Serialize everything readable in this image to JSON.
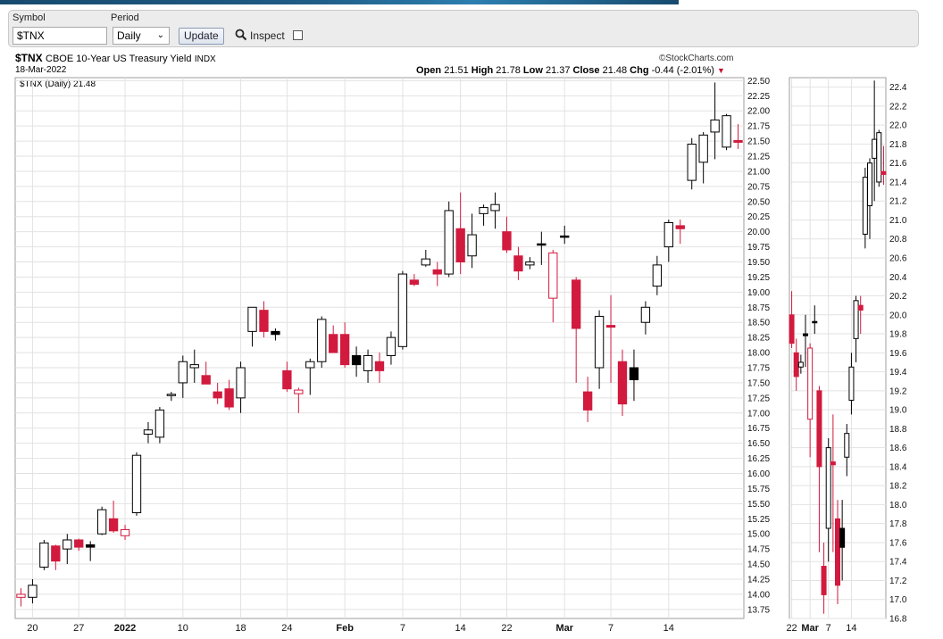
{
  "controls": {
    "symbol_label": "Symbol",
    "symbol_value": "$TNX",
    "period_label": "Period",
    "period_value": "Daily",
    "update_label": "Update",
    "inspect_label": "Inspect",
    "inspect_checked": false
  },
  "header": {
    "symbol": "$TNX",
    "name": "CBOE 10-Year US Treasury Yield",
    "exchange": "INDX",
    "date": "18-Mar-2022",
    "brand": "©StockCharts.com",
    "legend": "$TNX (Daily) 21.48",
    "open_label": "Open",
    "open": "21.51",
    "high_label": "High",
    "high": "21.78",
    "low_label": "Low",
    "low": "21.37",
    "close_label": "Close",
    "close": "21.48",
    "chg_label": "Chg",
    "chg": "-0.44 (-2.01%)"
  },
  "colors": {
    "up": "#ffffff",
    "down_solid": "#d11a3e",
    "black": "#000000",
    "grid": "#e2e2e2",
    "accent": "#c41230"
  },
  "chart_data": [
    {
      "type": "candlestick",
      "title": "$TNX CBOE 10-Year US Treasury Yield INDX",
      "ylim": [
        13.6,
        22.55
      ],
      "yticks": [
        13.75,
        14.0,
        14.25,
        14.5,
        14.75,
        15.0,
        15.25,
        15.5,
        15.75,
        16.0,
        16.25,
        16.5,
        16.75,
        17.0,
        17.25,
        17.5,
        17.75,
        18.0,
        18.25,
        18.5,
        18.75,
        19.0,
        19.25,
        19.5,
        19.75,
        20.0,
        20.25,
        20.5,
        20.75,
        21.0,
        21.25,
        21.5,
        21.75,
        22.0,
        22.25,
        22.5
      ],
      "xticks": [
        {
          "label": "20",
          "i": 1
        },
        {
          "label": "27",
          "i": 5
        },
        {
          "label": "2022",
          "i": 9
        },
        {
          "label": "10",
          "i": 14
        },
        {
          "label": "18",
          "i": 19
        },
        {
          "label": "24",
          "i": 23
        },
        {
          "label": "Feb",
          "i": 28
        },
        {
          "label": "7",
          "i": 33
        },
        {
          "label": "14",
          "i": 38
        },
        {
          "label": "22",
          "i": 42
        },
        {
          "label": "Mar",
          "i": 47
        },
        {
          "label": "7",
          "i": 51
        },
        {
          "label": "14",
          "i": 56
        }
      ],
      "bars": [
        {
          "o": 14.0,
          "h": 14.1,
          "l": 13.8,
          "c": 13.95,
          "k": "hollow-red"
        },
        {
          "o": 13.95,
          "h": 14.25,
          "l": 13.85,
          "c": 14.15,
          "k": "up"
        },
        {
          "o": 14.45,
          "h": 14.9,
          "l": 14.4,
          "c": 14.85,
          "k": "up"
        },
        {
          "o": 14.8,
          "h": 14.82,
          "l": 14.4,
          "c": 14.55,
          "k": "down"
        },
        {
          "o": 14.75,
          "h": 15.0,
          "l": 14.5,
          "c": 14.9,
          "k": "up"
        },
        {
          "o": 14.9,
          "h": 14.92,
          "l": 14.72,
          "c": 14.78,
          "k": "down"
        },
        {
          "o": 14.78,
          "h": 14.88,
          "l": 14.55,
          "c": 14.82,
          "k": "black"
        },
        {
          "o": 15.0,
          "h": 15.45,
          "l": 14.98,
          "c": 15.4,
          "k": "up"
        },
        {
          "o": 15.25,
          "h": 15.55,
          "l": 15.02,
          "c": 15.05,
          "k": "down"
        },
        {
          "o": 15.07,
          "h": 15.15,
          "l": 14.9,
          "c": 14.97,
          "k": "hollow-red"
        },
        {
          "o": 15.35,
          "h": 16.35,
          "l": 15.3,
          "c": 16.3,
          "k": "up"
        },
        {
          "o": 16.65,
          "h": 16.85,
          "l": 16.5,
          "c": 16.72,
          "k": "up"
        },
        {
          "o": 16.6,
          "h": 17.1,
          "l": 16.5,
          "c": 17.05,
          "k": "up"
        },
        {
          "o": 17.3,
          "h": 17.35,
          "l": 17.2,
          "c": 17.31,
          "k": "up"
        },
        {
          "o": 17.5,
          "h": 17.95,
          "l": 17.25,
          "c": 17.85,
          "k": "up"
        },
        {
          "o": 17.75,
          "h": 18.05,
          "l": 17.5,
          "c": 17.8,
          "k": "up"
        },
        {
          "o": 17.62,
          "h": 17.85,
          "l": 17.48,
          "c": 17.48,
          "k": "down"
        },
        {
          "o": 17.35,
          "h": 17.5,
          "l": 17.15,
          "c": 17.25,
          "k": "down"
        },
        {
          "o": 17.4,
          "h": 17.55,
          "l": 17.05,
          "c": 17.1,
          "k": "down"
        },
        {
          "o": 17.25,
          "h": 17.85,
          "l": 17.0,
          "c": 17.75,
          "k": "up"
        },
        {
          "o": 18.35,
          "h": 18.75,
          "l": 18.1,
          "c": 18.75,
          "k": "up"
        },
        {
          "o": 18.7,
          "h": 18.85,
          "l": 18.25,
          "c": 18.35,
          "k": "down"
        },
        {
          "o": 18.3,
          "h": 18.4,
          "l": 18.2,
          "c": 18.35,
          "k": "black"
        },
        {
          "o": 17.7,
          "h": 17.85,
          "l": 17.35,
          "c": 17.4,
          "k": "down"
        },
        {
          "o": 17.38,
          "h": 17.42,
          "l": 17.0,
          "c": 17.32,
          "k": "hollow-red"
        },
        {
          "o": 17.75,
          "h": 17.9,
          "l": 17.3,
          "c": 17.85,
          "k": "up"
        },
        {
          "o": 17.85,
          "h": 18.6,
          "l": 17.75,
          "c": 18.55,
          "k": "up"
        },
        {
          "o": 18.3,
          "h": 18.45,
          "l": 18.0,
          "c": 18.0,
          "k": "down"
        },
        {
          "o": 18.3,
          "h": 18.5,
          "l": 17.75,
          "c": 17.8,
          "k": "down"
        },
        {
          "o": 17.8,
          "h": 18.1,
          "l": 17.6,
          "c": 17.95,
          "k": "black"
        },
        {
          "o": 17.95,
          "h": 18.05,
          "l": 17.5,
          "c": 17.7,
          "k": "up"
        },
        {
          "o": 17.85,
          "h": 18.0,
          "l": 17.5,
          "c": 17.7,
          "k": "down"
        },
        {
          "o": 17.95,
          "h": 18.35,
          "l": 17.8,
          "c": 18.25,
          "k": "up"
        },
        {
          "o": 18.1,
          "h": 19.35,
          "l": 18.05,
          "c": 19.3,
          "k": "up"
        },
        {
          "o": 19.2,
          "h": 19.3,
          "l": 19.1,
          "c": 19.13,
          "k": "down"
        },
        {
          "o": 19.45,
          "h": 19.7,
          "l": 19.42,
          "c": 19.55,
          "k": "up"
        },
        {
          "o": 19.37,
          "h": 19.5,
          "l": 19.1,
          "c": 19.3,
          "k": "down"
        },
        {
          "o": 19.3,
          "h": 20.5,
          "l": 19.25,
          "c": 20.35,
          "k": "up"
        },
        {
          "o": 20.05,
          "h": 20.65,
          "l": 19.3,
          "c": 19.5,
          "k": "down"
        },
        {
          "o": 19.6,
          "h": 20.3,
          "l": 19.4,
          "c": 19.95,
          "k": "up"
        },
        {
          "o": 20.3,
          "h": 20.45,
          "l": 20.1,
          "c": 20.4,
          "k": "up"
        },
        {
          "o": 20.35,
          "h": 20.65,
          "l": 20.05,
          "c": 20.45,
          "k": "up"
        },
        {
          "o": 20.0,
          "h": 20.25,
          "l": 19.65,
          "c": 19.7,
          "k": "down"
        },
        {
          "o": 19.6,
          "h": 19.75,
          "l": 19.2,
          "c": 19.35,
          "k": "down"
        },
        {
          "o": 19.5,
          "h": 19.58,
          "l": 19.38,
          "c": 19.45,
          "k": "up"
        },
        {
          "o": 19.8,
          "h": 20.0,
          "l": 19.45,
          "c": 19.78,
          "k": "black"
        },
        {
          "o": 19.65,
          "h": 19.7,
          "l": 18.5,
          "c": 18.9,
          "k": "hollow-red"
        },
        {
          "o": 19.93,
          "h": 20.1,
          "l": 19.8,
          "c": 19.93,
          "k": "black"
        },
        {
          "o": 19.2,
          "h": 19.25,
          "l": 17.5,
          "c": 18.4,
          "k": "down"
        },
        {
          "o": 17.35,
          "h": 17.6,
          "l": 16.85,
          "c": 17.05,
          "k": "down"
        },
        {
          "o": 17.75,
          "h": 18.7,
          "l": 17.4,
          "c": 18.6,
          "k": "up"
        },
        {
          "o": 18.45,
          "h": 18.95,
          "l": 17.5,
          "c": 18.42,
          "k": "down"
        },
        {
          "o": 17.85,
          "h": 18.05,
          "l": 16.95,
          "c": 17.15,
          "k": "down"
        },
        {
          "o": 17.55,
          "h": 18.05,
          "l": 17.2,
          "c": 17.75,
          "k": "black"
        },
        {
          "o": 18.5,
          "h": 18.85,
          "l": 18.3,
          "c": 18.75,
          "k": "up"
        },
        {
          "o": 19.1,
          "h": 19.6,
          "l": 18.95,
          "c": 19.45,
          "k": "up"
        },
        {
          "o": 19.75,
          "h": 20.2,
          "l": 19.5,
          "c": 20.15,
          "k": "up"
        },
        {
          "o": 20.1,
          "h": 20.2,
          "l": 19.8,
          "c": 20.05,
          "k": "down"
        },
        {
          "o": 20.85,
          "h": 21.55,
          "l": 20.7,
          "c": 21.45,
          "k": "up"
        },
        {
          "o": 21.15,
          "h": 21.65,
          "l": 20.8,
          "c": 21.6,
          "k": "up"
        },
        {
          "o": 21.65,
          "h": 22.47,
          "l": 21.2,
          "c": 21.85,
          "k": "up"
        },
        {
          "o": 21.4,
          "h": 21.95,
          "l": 21.35,
          "c": 21.92,
          "k": "up"
        },
        {
          "o": 21.51,
          "h": 21.78,
          "l": 21.37,
          "c": 21.48,
          "k": "down"
        }
      ]
    },
    {
      "type": "candlestick",
      "title": "",
      "ylim": [
        16.8,
        22.5
      ],
      "yticks": [
        16.8,
        17.0,
        17.2,
        17.4,
        17.6,
        17.8,
        18.0,
        18.2,
        18.4,
        18.6,
        18.8,
        19.0,
        19.2,
        19.4,
        19.6,
        19.8,
        20.0,
        20.2,
        20.4,
        20.6,
        20.8,
        21.0,
        21.2,
        21.4,
        21.6,
        21.8,
        22.0,
        22.2,
        22.4
      ],
      "xticks": [
        {
          "label": "22",
          "i": 0
        },
        {
          "label": "Mar",
          "i": 4
        },
        {
          "label": "7",
          "i": 8
        },
        {
          "label": "14",
          "i": 13
        }
      ],
      "bars_from_main_index": 42
    }
  ]
}
